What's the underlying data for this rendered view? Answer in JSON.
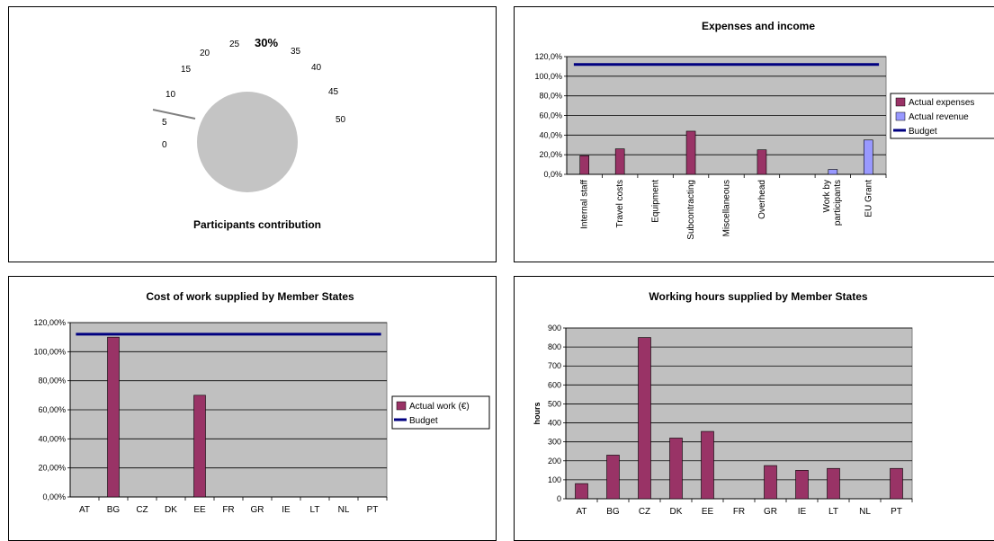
{
  "colors": {
    "expense_bar": "#993366",
    "revenue_bar": "#9999ff",
    "budget_line": "#000080",
    "plot_bg": "#c0c0c0",
    "gauge_disc": "#c4c4c4",
    "needle": "#808080"
  },
  "chart_data": [
    {
      "type": "gauge",
      "title": "Participants contribution",
      "value_label": "30%",
      "value": 30,
      "scale_ticks": [
        "0",
        "5",
        "10",
        "15",
        "20",
        "25",
        "35",
        "40",
        "45",
        "50"
      ],
      "range": [
        0,
        50
      ]
    },
    {
      "type": "bar",
      "title": "Expenses and income",
      "categories": [
        "Internal staff",
        "Travel costs",
        "Equipment",
        "Subcontracting",
        "Miscellaneous",
        "Overhead",
        "",
        "Work by participants",
        "EU Grant"
      ],
      "series": [
        {
          "name": "Actual expenses",
          "values": [
            19,
            26,
            null,
            44,
            null,
            25,
            null,
            null,
            null
          ]
        },
        {
          "name": "Actual revenue",
          "values": [
            null,
            null,
            null,
            null,
            null,
            null,
            null,
            5,
            35
          ]
        },
        {
          "name": "Budget",
          "kind": "line",
          "value": 112
        }
      ],
      "yticks": [
        "0,0%",
        "20,0%",
        "40,0%",
        "60,0%",
        "80,0%",
        "100,0%",
        "120,0%"
      ],
      "ylim": [
        0,
        120
      ],
      "legend": "right",
      "grid": true
    },
    {
      "type": "bar",
      "title": "Cost of work supplied by Member States",
      "categories": [
        "AT",
        "BG",
        "CZ",
        "DK",
        "EE",
        "FR",
        "GR",
        "IE",
        "LT",
        "NL",
        "PT"
      ],
      "series": [
        {
          "name": "Actual work (€)",
          "values": [
            0,
            110,
            0,
            0,
            70,
            0,
            0,
            0,
            0,
            0,
            0
          ]
        },
        {
          "name": "Budget",
          "kind": "line",
          "value": 112
        }
      ],
      "yticks": [
        "0,00%",
        "20,00%",
        "40,00%",
        "60,00%",
        "80,00%",
        "100,00%",
        "120,00%"
      ],
      "ylim": [
        0,
        120
      ],
      "legend": "right",
      "grid": true
    },
    {
      "type": "bar",
      "title": "Working hours supplied by Member States",
      "ylabel": "hours",
      "categories": [
        "AT",
        "BG",
        "CZ",
        "DK",
        "EE",
        "FR",
        "GR",
        "IE",
        "LT",
        "NL",
        "PT"
      ],
      "values": [
        80,
        230,
        850,
        320,
        355,
        0,
        175,
        150,
        160,
        0,
        160
      ],
      "yticks": [
        "0",
        "100",
        "200",
        "300",
        "400",
        "500",
        "600",
        "700",
        "800",
        "900"
      ],
      "ylim": [
        0,
        900
      ],
      "grid": true
    }
  ]
}
